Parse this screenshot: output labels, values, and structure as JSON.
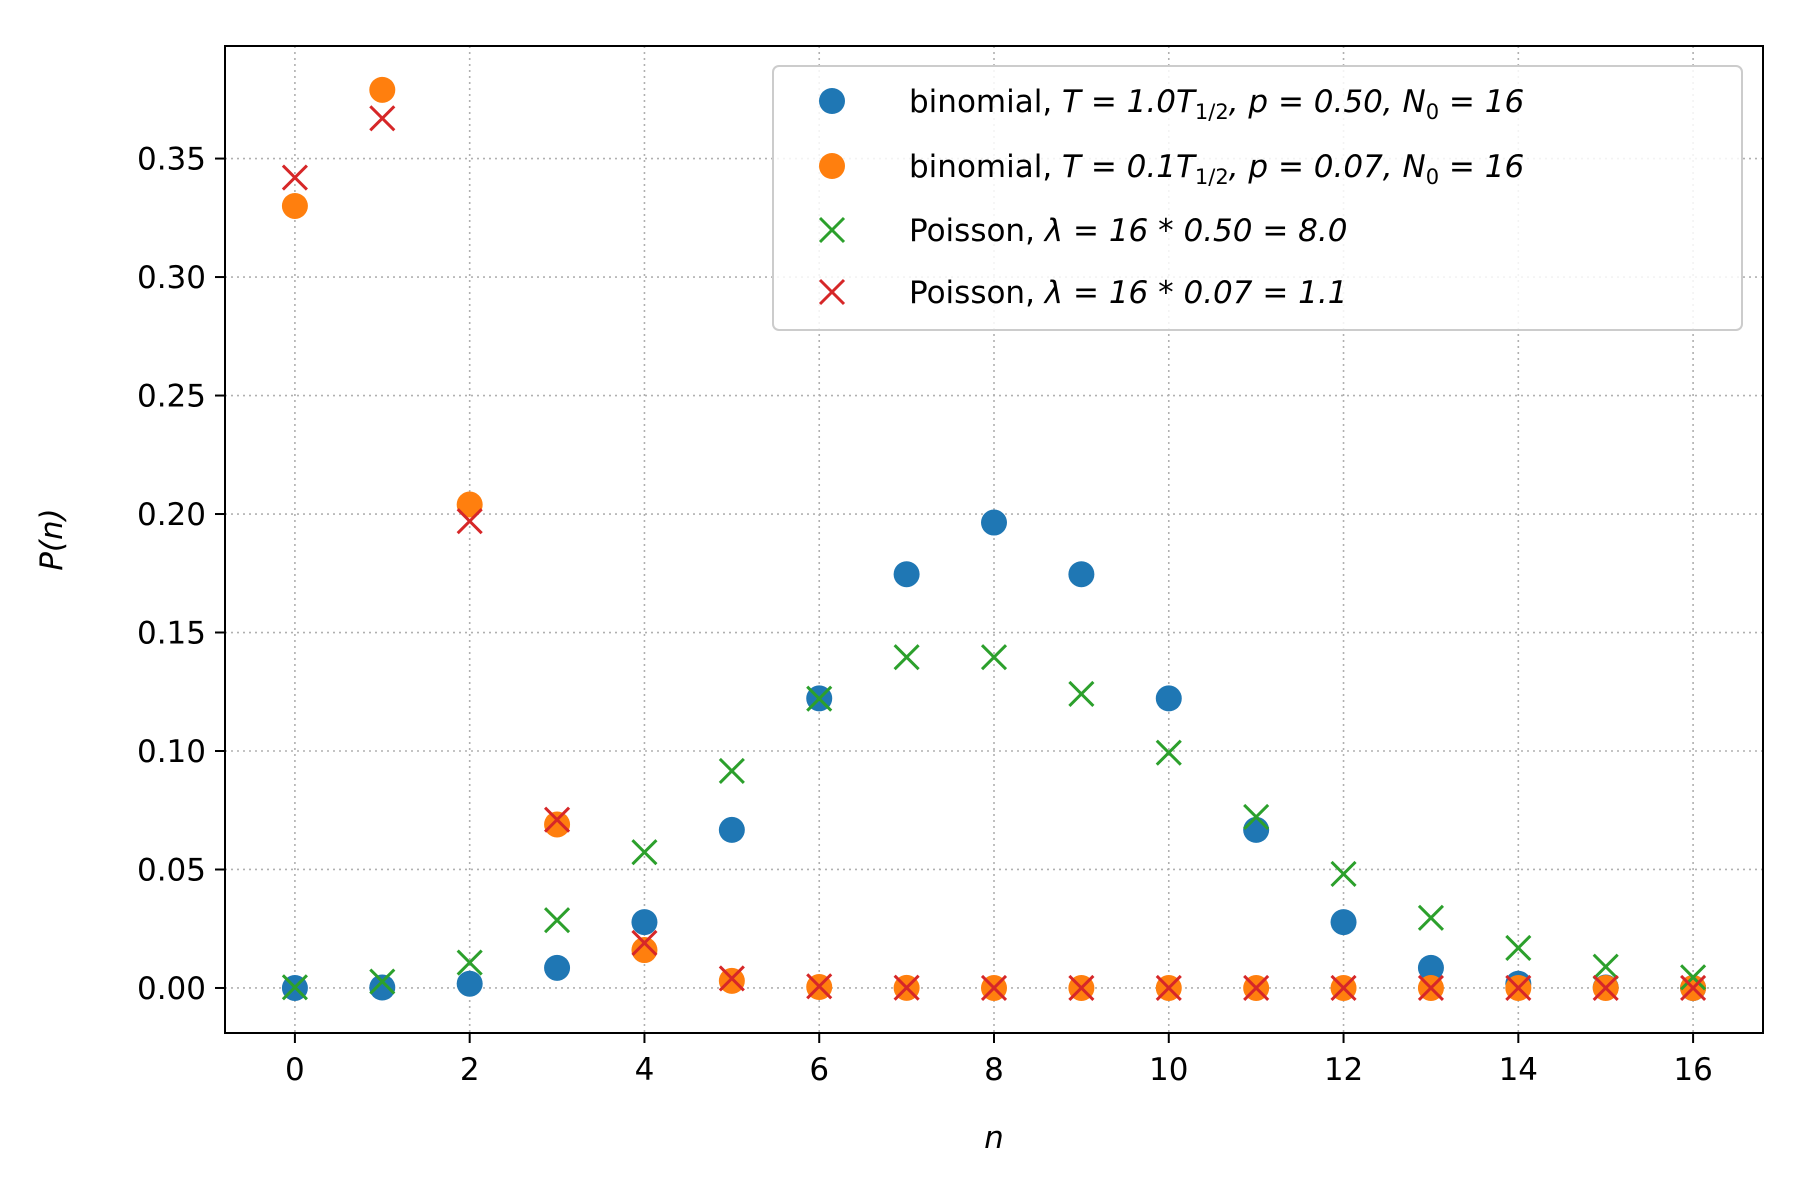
{
  "chart_data": {
    "type": "scatter",
    "title": "",
    "xlabel": "n",
    "ylabel": "P(n)",
    "xlim": [
      -0.8,
      16.8
    ],
    "ylim": [
      -0.019,
      0.3975
    ],
    "xticks": [
      0,
      2,
      4,
      6,
      8,
      10,
      12,
      14,
      16
    ],
    "xtick_labels": [
      "0",
      "2",
      "4",
      "6",
      "8",
      "10",
      "12",
      "14",
      "16"
    ],
    "yticks": [
      0.0,
      0.05,
      0.1,
      0.15,
      0.2,
      0.25,
      0.3,
      0.35
    ],
    "ytick_labels": [
      "0.00",
      "0.05",
      "0.10",
      "0.15",
      "0.20",
      "0.25",
      "0.30",
      "0.35"
    ],
    "grid": true,
    "legend_position": "top-right",
    "x": [
      0,
      1,
      2,
      3,
      4,
      5,
      6,
      7,
      8,
      9,
      10,
      11,
      12,
      13,
      14,
      15,
      16
    ],
    "series": [
      {
        "name": "binomial, T = 1.0T1/2, p = 0.50, N0 = 16",
        "marker": "circle",
        "color": "#1f77b4",
        "values": [
          0.0,
          0.0002,
          0.0018,
          0.0085,
          0.0278,
          0.0667,
          0.1222,
          0.1746,
          0.1964,
          0.1746,
          0.1222,
          0.0667,
          0.0278,
          0.0085,
          0.0018,
          0.0002,
          0.0
        ]
      },
      {
        "name": "binomial, T = 0.1T1/2, p = 0.07, N0 = 16",
        "marker": "circle",
        "color": "#ff7f0e",
        "values": [
          0.33,
          0.379,
          0.204,
          0.069,
          0.016,
          0.003,
          0.0004,
          4e-05,
          0.0,
          0.0,
          0.0,
          0.0,
          0.0,
          0.0,
          0.0,
          0.0,
          0.0
        ]
      },
      {
        "name": "Poisson, λ = 16 * 0.50 = 8.0",
        "marker": "x",
        "color": "#2ca02c",
        "values": [
          0.0003,
          0.0027,
          0.0107,
          0.0286,
          0.0573,
          0.0916,
          0.1221,
          0.1396,
          0.1396,
          0.1241,
          0.0993,
          0.0722,
          0.0481,
          0.0296,
          0.0169,
          0.009,
          0.0045
        ]
      },
      {
        "name": "Poisson, λ = 16 * 0.07 = 1.1",
        "marker": "x",
        "color": "#d62728",
        "values": [
          0.342,
          0.367,
          0.197,
          0.071,
          0.019,
          0.004,
          0.0007,
          0.0001,
          0.0,
          0.0,
          0.0,
          0.0,
          0.0,
          0.0,
          0.0,
          0.0,
          0.0
        ]
      }
    ],
    "legend": [
      {
        "prefix": "binomial, ",
        "math": "T = 1.0T",
        "sub": "1/2",
        "rest": ",  p = 0.50,  N",
        "sub2": "0",
        "rest2": " = 16"
      },
      {
        "prefix": "binomial, ",
        "math": "T = 0.1T",
        "sub": "1/2",
        "rest": ",  p = 0.07,  N",
        "sub2": "0",
        "rest2": " = 16"
      },
      {
        "prefix": "Poisson, ",
        "math": "λ = 16 * 0.50 = 8.0",
        "sub": "",
        "rest": "",
        "sub2": "",
        "rest2": ""
      },
      {
        "prefix": "Poisson, ",
        "math": "λ = 16 * 0.07 = 1.1",
        "sub": "",
        "rest": "",
        "sub2": "",
        "rest2": ""
      }
    ]
  }
}
